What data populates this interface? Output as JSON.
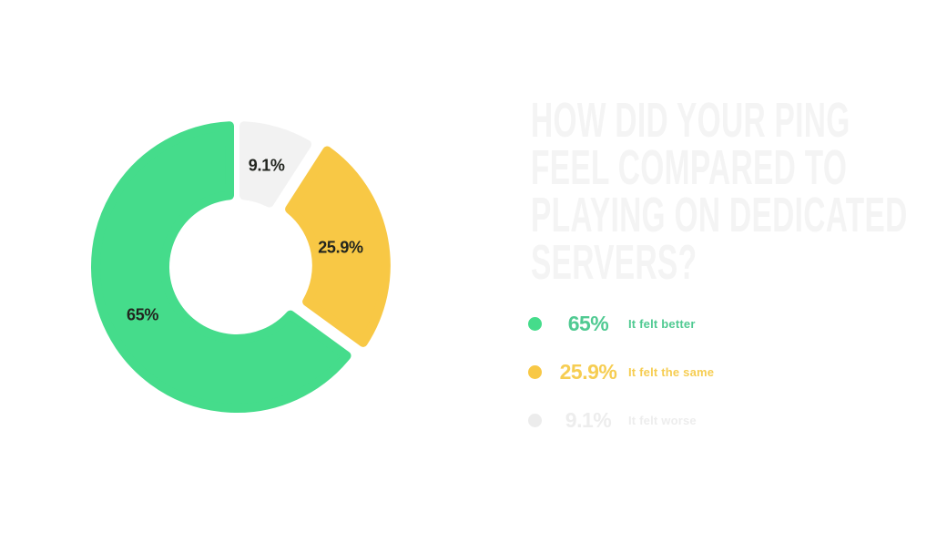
{
  "page": {
    "background_color": "#ffffff"
  },
  "title": {
    "text": "HOW DID YOUR PING FEEL COMPARED TO PLAYING ON DEDICATED SERVERS?",
    "lines": [
      "HOW DID YOUR PING",
      "FEEL COMPARED TO",
      "PLAYING ON DEDICATED",
      "SERVERS?"
    ],
    "color": "#f4f4f4"
  },
  "chart_data": {
    "type": "pie",
    "subtype": "donut",
    "title": "How did your ping feel compared to playing on dedicated servers?",
    "categories": [
      "It felt better",
      "It felt the same",
      "It felt worse"
    ],
    "values": [
      65,
      25.9,
      9.1
    ],
    "slices_clockwise_from_top": [
      {
        "label": "It felt worse",
        "value": 9.1,
        "display": "9.1%",
        "color": "#F2F2F2",
        "exploded": false
      },
      {
        "label": "It felt the same",
        "value": 25.9,
        "display": "25.9%",
        "color": "#F8C845",
        "exploded": true
      },
      {
        "label": "It felt better",
        "value": 65,
        "display": "65%",
        "color": "#45DC8B",
        "exploded": false
      }
    ],
    "slice_label_color": "#22251f",
    "inner_radius_ratio": 0.46,
    "legend_position": "right",
    "grid": false
  },
  "legend": {
    "items": [
      {
        "pct": "65%",
        "label": "It felt better",
        "dot_color": "#45DC8B",
        "text_color": "#50CA92"
      },
      {
        "pct": "25.9%",
        "label": "It felt the same",
        "dot_color": "#F8C845",
        "text_color": "#F6CD52"
      },
      {
        "pct": "9.1%",
        "label": "It felt worse",
        "dot_color": "#ECECEC",
        "text_color": "#EDEDED"
      }
    ]
  }
}
